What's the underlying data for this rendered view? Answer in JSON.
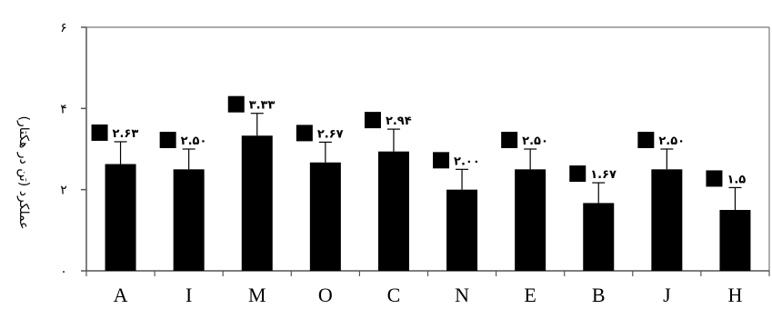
{
  "chart_data": {
    "type": "bar",
    "categories": [
      "A",
      "I",
      "M",
      "O",
      "C",
      "N",
      "E",
      "B",
      "J",
      "H"
    ],
    "values": [
      2.63,
      2.5,
      3.33,
      2.67,
      2.94,
      2.0,
      2.5,
      1.67,
      2.5,
      1.5
    ],
    "errors": [
      0.55,
      0.5,
      0.55,
      0.5,
      0.55,
      0.5,
      0.5,
      0.5,
      0.5,
      0.55
    ],
    "value_labels": [
      "۲.۶۳",
      "۲.۵۰",
      "۳.۳۳",
      "۲.۶۷",
      "۲.۹۴",
      "۲.۰۰",
      "۲.۵۰",
      "۱.۶۷",
      "۲.۵۰",
      "۱.۵"
    ],
    "yticks": [
      0,
      2,
      4,
      6
    ],
    "ytick_labels": [
      "۰",
      "۲",
      "۴",
      "۶"
    ],
    "ylim": [
      0,
      6
    ],
    "ylabel": "عملکرد (تن در هکتار)",
    "xlabel": "",
    "title": "",
    "grid": false,
    "bar_color": "#000000"
  }
}
